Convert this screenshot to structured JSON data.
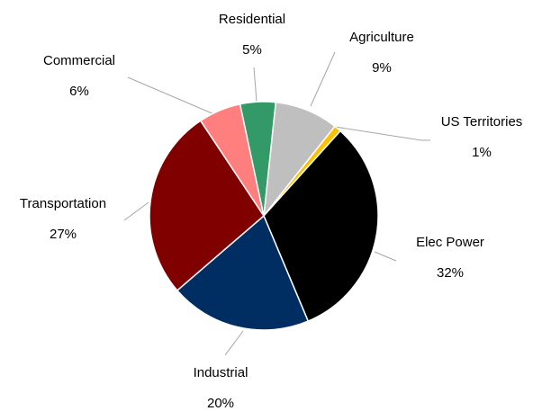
{
  "chart_data": {
    "type": "pie",
    "categories": [
      "Agriculture",
      "US Territories",
      "Elec Power",
      "Industrial",
      "Transportation",
      "Commercial",
      "Residential"
    ],
    "values": [
      9,
      1,
      32,
      20,
      27,
      6,
      5
    ],
    "value_labels": [
      "9%",
      "1%",
      "32%",
      "20%",
      "27%",
      "6%",
      "5%"
    ],
    "colors": [
      "#bfbfbf",
      "#ffc000",
      "#000000",
      "#002d62",
      "#800000",
      "#ff7f7f",
      "#339966"
    ]
  }
}
